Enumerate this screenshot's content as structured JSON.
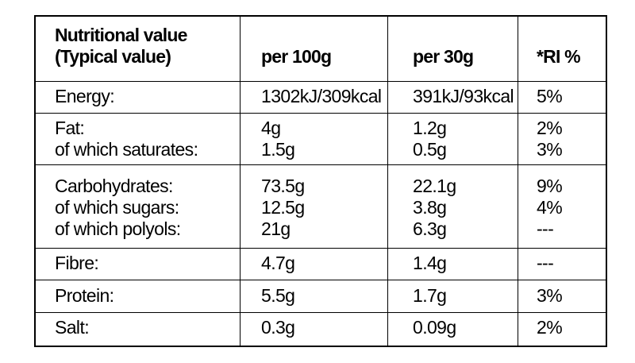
{
  "header": {
    "label_line1": "Nutritional value",
    "label_line2": "(Typical value)",
    "col_100g": "per 100g",
    "col_30g": "per 30g",
    "col_ri": "*RI %"
  },
  "rows": [
    {
      "labels": [
        "Energy:"
      ],
      "per100": [
        "1302kJ/309kcal"
      ],
      "per30": [
        "391kJ/93kcal"
      ],
      "ri": [
        "5%"
      ]
    },
    {
      "labels": [
        "Fat:",
        "of which saturates:"
      ],
      "per100": [
        "4g",
        "1.5g"
      ],
      "per30": [
        "1.2g",
        "0.5g"
      ],
      "ri": [
        "2%",
        "3%"
      ]
    },
    {
      "labels": [
        "Carbohydrates:",
        "of which sugars:",
        "of which polyols:"
      ],
      "per100": [
        "73.5g",
        "12.5g",
        "21g"
      ],
      "per30": [
        "22.1g",
        "3.8g",
        "6.3g"
      ],
      "ri": [
        "9%",
        "4%",
        "---"
      ]
    },
    {
      "labels": [
        "Fibre:"
      ],
      "per100": [
        "4.7g"
      ],
      "per30": [
        "1.4g"
      ],
      "ri": [
        "---"
      ]
    },
    {
      "labels": [
        "Protein:"
      ],
      "per100": [
        "5.5g"
      ],
      "per30": [
        "1.7g"
      ],
      "ri": [
        "3%"
      ]
    },
    {
      "labels": [
        "Salt:"
      ],
      "per100": [
        "0.3g"
      ],
      "per30": [
        "0.09g"
      ],
      "ri": [
        "2%"
      ]
    }
  ]
}
